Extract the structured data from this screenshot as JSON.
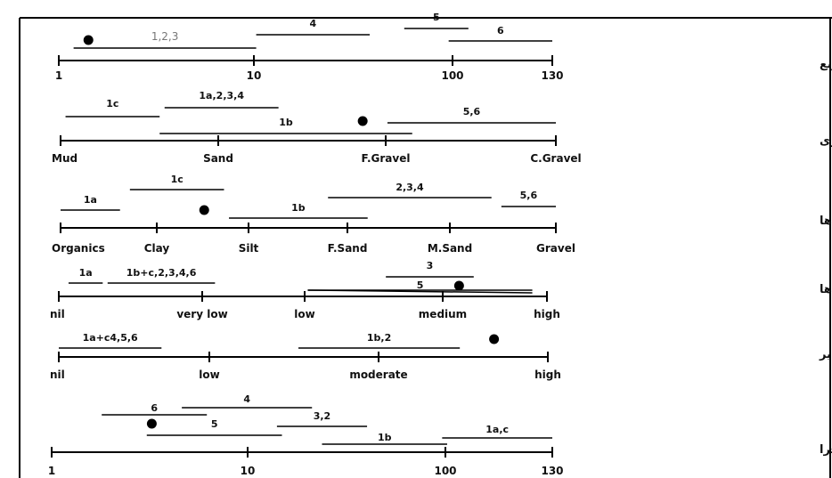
{
  "rows": [
    {
      "id": "stream-power",
      "title": "توان جریان بر حسب وات بر متر مربع",
      "ticks": [
        "1",
        "10",
        "100",
        "130"
      ],
      "bars": [
        {
          "label": "1,2,3",
          "start": 0.03,
          "end": 0.4,
          "style": "grey"
        },
        {
          "label": "4",
          "start": 0.4,
          "end": 0.63
        },
        {
          "label": "5",
          "start": 0.7,
          "end": 0.83
        },
        {
          "label": "6",
          "start": 0.79,
          "end": 1.0
        }
      ],
      "dots": [
        0.06
      ]
    },
    {
      "id": "bed-load",
      "title": "اندازه بار بستری",
      "ticks": [
        "Mud",
        "Sand",
        "F.Gravel",
        "C.Gravel"
      ],
      "bars": [
        {
          "label": "1c",
          "start": 0.01,
          "end": 0.2
        },
        {
          "label": "1a,2,3,4",
          "start": 0.21,
          "end": 0.44
        },
        {
          "label": "1b",
          "start": 0.2,
          "end": 0.71
        },
        {
          "label": "5,6",
          "start": 0.66,
          "end": 1.0
        }
      ],
      "dots": [
        0.61
      ]
    },
    {
      "id": "bank-particles",
      "title": "اندازه ذرات کرانه ها",
      "ticks": [
        "Organics",
        "Clay",
        "Silt",
        "F.Sand",
        "M.Sand",
        "Gravel"
      ],
      "bars": [
        {
          "label": "1a",
          "start": 0.0,
          "end": 0.12
        },
        {
          "label": "1c",
          "start": 0.14,
          "end": 0.33
        },
        {
          "label": "1b",
          "start": 0.34,
          "end": 0.62
        },
        {
          "label": "2,3,4",
          "start": 0.54,
          "end": 0.87
        },
        {
          "label": "5,6",
          "start": 0.89,
          "end": 1.0
        }
      ],
      "dots": [
        0.29
      ]
    },
    {
      "id": "bank-erosion",
      "title": "میزان جابجایی کرانه ها",
      "ticks": [
        "nil",
        "very low",
        "low",
        "medium",
        "high"
      ],
      "bars": [
        {
          "label": "1a",
          "start": 0.02,
          "end": 0.09
        },
        {
          "label": "1b+c,2,3,4,6",
          "start": 0.1,
          "end": 0.32
        },
        {
          "label": "3",
          "start": 0.67,
          "end": 0.85
        },
        {
          "label": "5",
          "start": 0.51,
          "end": 0.97,
          "sloped": true
        }
      ],
      "dots": [
        0.82
      ]
    },
    {
      "id": "island-aggradation",
      "title": "میزان افزایش عمودی جزایر",
      "ticks": [
        "nil",
        "low",
        "moderate",
        "high"
      ],
      "bars": [
        {
          "label": "1a+c4,5,6",
          "start": 0.0,
          "end": 0.21
        },
        {
          "label": "1b,2",
          "start": 0.49,
          "end": 0.82
        }
      ],
      "dots": [
        0.89
      ]
    },
    {
      "id": "island-length-width",
      "title": "میزان طول جزایر به پهنای مجرا",
      "ticks": [
        "1",
        "10",
        "100",
        "130"
      ],
      "bars": [
        {
          "label": "6",
          "start": 0.1,
          "end": 0.31
        },
        {
          "label": "4",
          "start": 0.26,
          "end": 0.52
        },
        {
          "label": "3,2",
          "start": 0.45,
          "end": 0.63
        },
        {
          "label": "5",
          "start": 0.19,
          "end": 0.46
        },
        {
          "label": "1b",
          "start": 0.54,
          "end": 0.79
        },
        {
          "label": "1a,c",
          "start": 0.78,
          "end": 1.0
        }
      ],
      "dots": [
        0.2
      ]
    }
  ]
}
